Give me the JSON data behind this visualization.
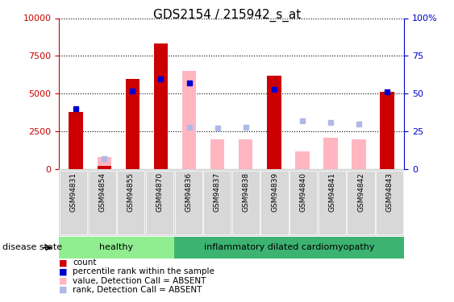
{
  "title": "GDS2154 / 215942_s_at",
  "samples": [
    "GSM94831",
    "GSM94854",
    "GSM94855",
    "GSM94870",
    "GSM94836",
    "GSM94837",
    "GSM94838",
    "GSM94839",
    "GSM94840",
    "GSM94841",
    "GSM94842",
    "GSM94843"
  ],
  "healthy_count": 4,
  "idc_count": 8,
  "count_values": [
    3800,
    200,
    6000,
    8300,
    null,
    null,
    null,
    6200,
    null,
    null,
    null,
    5100
  ],
  "percentile_values": [
    4000,
    null,
    5200,
    6000,
    5700,
    null,
    null,
    5300,
    null,
    null,
    null,
    5100
  ],
  "value_absent": [
    null,
    800,
    null,
    null,
    6500,
    2000,
    2000,
    null,
    1200,
    2100,
    2000,
    null
  ],
  "rank_absent": [
    null,
    700,
    null,
    null,
    2800,
    2700,
    2800,
    null,
    3200,
    3100,
    3000,
    null
  ],
  "ylim_left": [
    0,
    10000
  ],
  "ylim_right": [
    0,
    100
  ],
  "yticks_left": [
    0,
    2500,
    5000,
    7500,
    10000
  ],
  "yticks_right": [
    0,
    25,
    50,
    75,
    100
  ],
  "color_count": "#cc0000",
  "color_percentile": "#0000cc",
  "color_value_absent": "#FFB6C1",
  "color_rank_absent": "#b0b8e8",
  "bar_width": 0.5,
  "healthy_color": "#90EE90",
  "idc_color": "#3CB371",
  "legend_items": [
    {
      "label": "count",
      "color": "#cc0000"
    },
    {
      "label": "percentile rank within the sample",
      "color": "#0000cc"
    },
    {
      "label": "value, Detection Call = ABSENT",
      "color": "#FFB6C1"
    },
    {
      "label": "rank, Detection Call = ABSENT",
      "color": "#b0b8e8"
    }
  ]
}
